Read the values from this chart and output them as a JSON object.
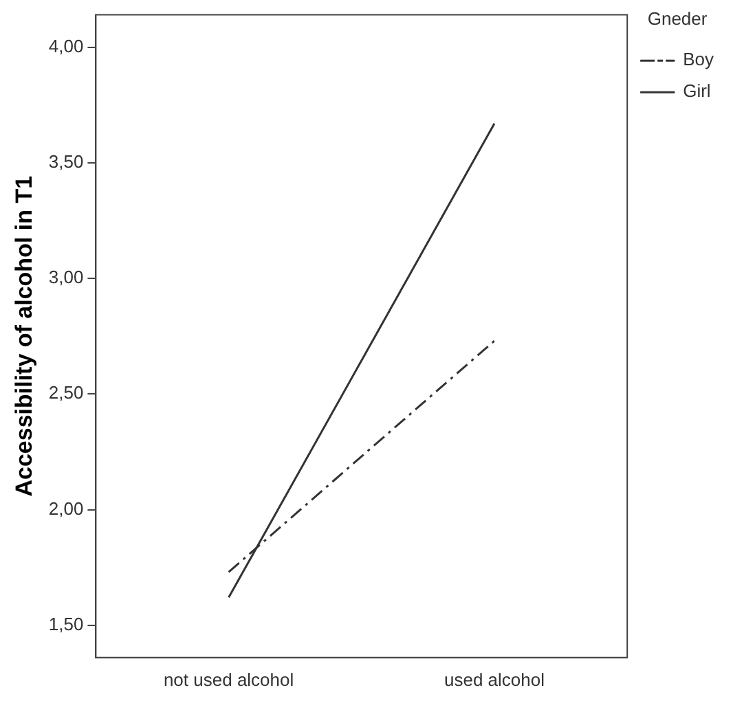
{
  "chart_data": {
    "type": "line",
    "ylabel": "Accessibility of alcohol in T1",
    "legend_title": "Gneder",
    "legend": "top right",
    "marker": "none",
    "grid": false,
    "categories": [
      "not used alcohol",
      "used alcohol"
    ],
    "ylim": [
      1.36,
      4.14
    ],
    "yticks": [
      {
        "value": 1.5,
        "label": "1,50"
      },
      {
        "value": 2,
        "label": "2,00"
      },
      {
        "value": 2.5,
        "label": "2,50"
      },
      {
        "value": 3,
        "label": "3,00"
      },
      {
        "value": 3.5,
        "label": "3,50"
      },
      {
        "value": 4,
        "label": "4,00"
      }
    ],
    "series": [
      {
        "name": "Boy",
        "color": "#333333",
        "line_style": "dashed",
        "values": [
          1.73,
          2.73
        ]
      },
      {
        "name": "Girl",
        "color": "#333333",
        "line_style": "solid",
        "values": [
          1.62,
          3.67
        ]
      }
    ]
  }
}
